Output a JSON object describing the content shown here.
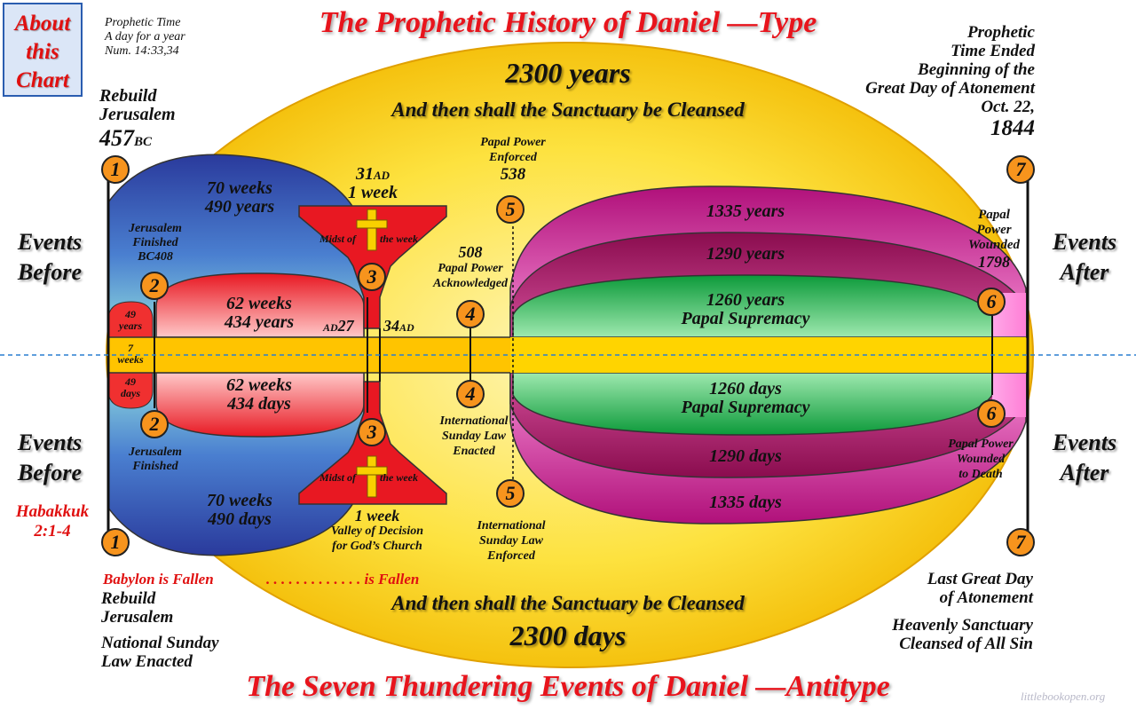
{
  "title_top": "The Prophetic History of Daniel —Type",
  "title_bottom": "The Seven Thundering Events of Daniel —Antitype",
  "about_label": "About\nthis\nChart",
  "prophetic_time": [
    "Prophetic Time",
    "A day for a year",
    "Num. 14:33,34"
  ],
  "top_banner": {
    "main": "2300 years",
    "sub": "And then shall the Sanctuary be Cleansed"
  },
  "bottom_banner": {
    "main": "2300 days",
    "sub": "And then shall the Sanctuary be Cleansed"
  },
  "top_left": {
    "line1": "Rebuild",
    "line2": "Jerusalem",
    "year": "457",
    "suffix": "BC"
  },
  "top_right": [
    "Prophetic",
    "Time Ended",
    "Beginning of the",
    "Great Day of Atonement",
    "Oct. 22,",
    "1844"
  ],
  "events_before": [
    "Events",
    "Before"
  ],
  "events_after": [
    "Events",
    "After"
  ],
  "habakkuk": [
    "Habakkuk",
    "2:1-4"
  ],
  "segments": {
    "w70_top": [
      "70 weeks",
      "490 years"
    ],
    "w70_bot": [
      "70 weeks",
      "490 days"
    ],
    "w62_top": [
      "62 weeks",
      "434 years"
    ],
    "w62_bot": [
      "62 weeks",
      "434 days"
    ],
    "w49_top": [
      "49",
      "years"
    ],
    "w49_bot": [
      "49",
      "days"
    ],
    "w7": [
      "7",
      "weeks"
    ],
    "p1335_top": "1335 years",
    "p1290_top": "1290 years",
    "p1260_top": [
      "1260 years",
      "Papal Supremacy"
    ],
    "p1260_bot": [
      "1260 days",
      "Papal Supremacy"
    ],
    "p1290_bot": "1290 days",
    "p1335_bot": "1335 days"
  },
  "labels": {
    "jer_finished_top": [
      "Jerusalem",
      "Finished",
      "BC408"
    ],
    "jer_finished_bot": [
      "Jerusalem",
      "Finished"
    ],
    "ad31": {
      "year": "31",
      "suffix": "AD",
      "sub": "1 week"
    },
    "midst_top": [
      "Midst of",
      "the week"
    ],
    "midst_bot": [
      "Midst of",
      "the week"
    ],
    "ad27": {
      "prefix": "AD",
      "year": "27"
    },
    "ad34": {
      "year": "34",
      "suffix": "AD"
    },
    "one_week_bot": [
      "1 week",
      "Valley of Decision",
      "for God’s Church"
    ],
    "papal_enforced": [
      "Papal Power",
      "Enforced",
      "538"
    ],
    "papal_ack": [
      "508",
      "Papal Power",
      "Acknowledged"
    ],
    "intl_law_enacted": [
      "International",
      "Sunday Law",
      "Enacted"
    ],
    "intl_law_enforced": [
      "International",
      "Sunday Law",
      "Enforced"
    ],
    "papal_wounded": [
      "Papal",
      "Power",
      "Wounded",
      "1798"
    ],
    "papal_wounded_death": [
      "Papal Power",
      "Wounded",
      "to Death"
    ]
  },
  "bottom_left": {
    "babylon": "Babylon is Fallen",
    "dots": ". . . . . . . . . . . . . is Fallen",
    "rebuild": [
      "Rebuild",
      "Jerusalem"
    ],
    "law": [
      "National Sunday",
      "Law Enacted"
    ]
  },
  "bottom_right": [
    "Last Great Day",
    "of Atonement",
    "Heavenly Sanctuary",
    "Cleansed of All Sin"
  ],
  "watermark": "littlebookopen.org",
  "badges": [
    "1",
    "2",
    "3",
    "4",
    "5",
    "6",
    "7",
    "1",
    "2",
    "3",
    "4",
    "5",
    "6",
    "7"
  ],
  "colors": {
    "title_red": "#e8141c",
    "ellipse_yellow": "#fde23f",
    "badge_orange": "#f7941d",
    "magenta": "#e23bb3"
  }
}
